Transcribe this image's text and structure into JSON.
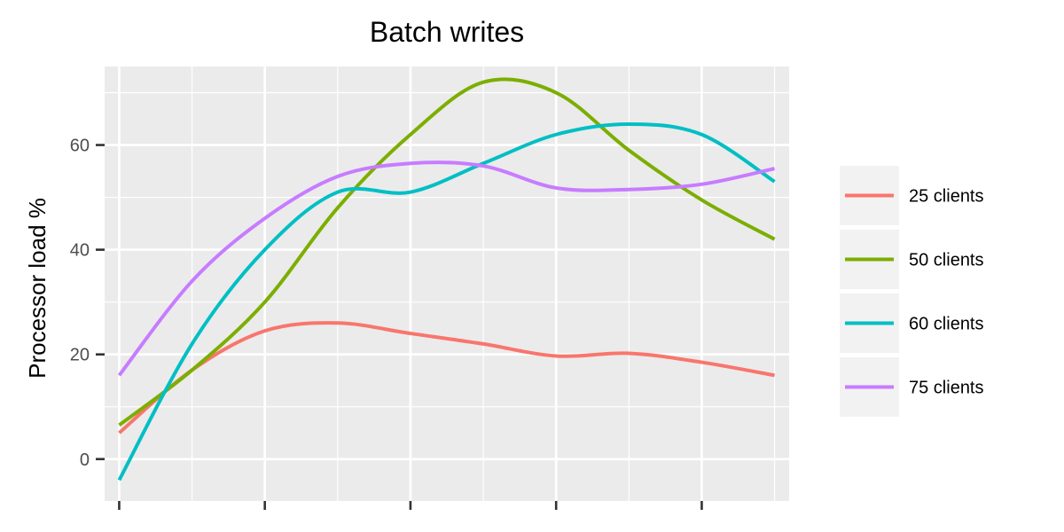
{
  "chart_data": {
    "type": "line",
    "title": "Batch writes",
    "xlabel": "",
    "ylabel": "Processor load %",
    "x": [
      0,
      1,
      2,
      3,
      4,
      5,
      6,
      7,
      8,
      9
    ],
    "xlim": [
      -0.2,
      9.2
    ],
    "x_major_ticks": [
      0,
      2,
      4,
      6,
      8
    ],
    "x_minor_gridlines": [
      1,
      3,
      5,
      7,
      9
    ],
    "ylim": [
      -8,
      75
    ],
    "y_ticks": [
      0,
      20,
      40,
      60
    ],
    "y_tick_labels": [
      "0",
      "20",
      "40",
      "60"
    ],
    "grid": true,
    "legend_position": "right",
    "series": [
      {
        "name": "25 clients",
        "color": "#F8766D",
        "values": [
          5,
          17,
          24.5,
          26,
          24,
          22,
          19.7,
          20.2,
          18.5,
          16
        ]
      },
      {
        "name": "50 clients",
        "color": "#7CAE00",
        "values": [
          6.5,
          17,
          30,
          48,
          62,
          72,
          70,
          59,
          49.5,
          42
        ]
      },
      {
        "name": "60 clients",
        "color": "#00BFC4",
        "values": [
          -4,
          22,
          40,
          51,
          51,
          56.5,
          62,
          64,
          62,
          53
        ]
      },
      {
        "name": "75 clients",
        "color": "#C77CFF",
        "values": [
          16,
          34,
          46,
          54,
          56.5,
          56,
          51.8,
          51.5,
          52.5,
          55.5
        ]
      }
    ]
  }
}
